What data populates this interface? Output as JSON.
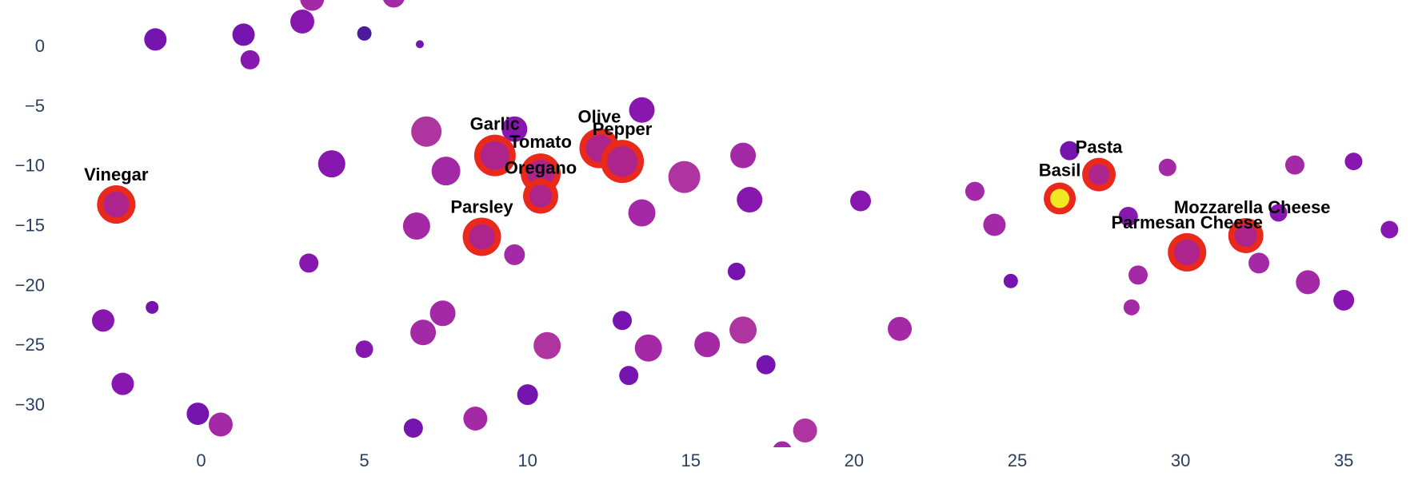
{
  "chart_data": {
    "type": "scatter",
    "title": "",
    "xlabel": "",
    "ylabel": "",
    "xlim": [
      -4.2,
      37.2
    ],
    "ylim": [
      -33.6,
      3.8
    ],
    "grid": false,
    "x_ticks": [
      0,
      5,
      10,
      15,
      20,
      25,
      30,
      35
    ],
    "x_tick_labels": [
      "0",
      "5",
      "10",
      "15",
      "20",
      "25",
      "30",
      "35"
    ],
    "y_ticks": [
      0,
      -5,
      -10,
      -15,
      -20,
      -25,
      -30
    ],
    "y_tick_labels": [
      "0",
      "−5",
      "−10",
      "−15",
      "−20",
      "−25",
      "−30"
    ],
    "colors": {
      "dark_purple": "#3d0a91",
      "purple": "#6a00a8",
      "violet": "#7e03a8",
      "magenta_purple": "#9c179e",
      "orchid": "#a72497",
      "highlight_ring": "#e8291c",
      "highlight_fill": "#f0f921",
      "axis_text": "#2a3f5f"
    },
    "points": [
      {
        "x": -1.4,
        "y": 0.5,
        "size": 14,
        "color": "#6a00a8"
      },
      {
        "x": 1.3,
        "y": 0.9,
        "size": 14,
        "color": "#6a00a8"
      },
      {
        "x": 1.5,
        "y": -1.2,
        "size": 12,
        "color": "#7e03a8"
      },
      {
        "x": 3.1,
        "y": 2.0,
        "size": 15,
        "color": "#7e03a8"
      },
      {
        "x": 3.4,
        "y": 3.9,
        "size": 15,
        "color": "#9c179e"
      },
      {
        "x": 5.0,
        "y": 1.0,
        "size": 9,
        "color": "#3d0a91"
      },
      {
        "x": 5.9,
        "y": 4.1,
        "size": 14,
        "color": "#9c179e"
      },
      {
        "x": 6.7,
        "y": 0.1,
        "size": 5,
        "color": "#6a00a8"
      },
      {
        "x": 6.9,
        "y": -7.2,
        "size": 19,
        "color": "#a72497"
      },
      {
        "x": 4.0,
        "y": -9.9,
        "size": 17,
        "color": "#7e03a8"
      },
      {
        "x": 7.5,
        "y": -10.5,
        "size": 18,
        "color": "#9c179e"
      },
      {
        "x": 9.6,
        "y": -7.0,
        "size": 16,
        "color": "#7e03a8"
      },
      {
        "x": 13.5,
        "y": -5.4,
        "size": 16,
        "color": "#7e03a8"
      },
      {
        "x": 14.8,
        "y": -11.0,
        "size": 20,
        "color": "#a72497"
      },
      {
        "x": 16.6,
        "y": -9.2,
        "size": 16,
        "color": "#9c179e"
      },
      {
        "x": 13.5,
        "y": -14.0,
        "size": 17,
        "color": "#9c179e"
      },
      {
        "x": 16.8,
        "y": -12.9,
        "size": 16,
        "color": "#7e03a8"
      },
      {
        "x": 6.6,
        "y": -15.1,
        "size": 17,
        "color": "#9c179e"
      },
      {
        "x": 9.6,
        "y": -17.5,
        "size": 13,
        "color": "#9c179e"
      },
      {
        "x": 3.3,
        "y": -18.2,
        "size": 12,
        "color": "#7e03a8"
      },
      {
        "x": 16.4,
        "y": -18.9,
        "size": 11,
        "color": "#6a00a8"
      },
      {
        "x": 20.2,
        "y": -13.0,
        "size": 13,
        "color": "#7e03a8"
      },
      {
        "x": 23.7,
        "y": -12.2,
        "size": 12,
        "color": "#9c179e"
      },
      {
        "x": 24.3,
        "y": -15.0,
        "size": 14,
        "color": "#9c179e"
      },
      {
        "x": 24.8,
        "y": -19.7,
        "size": 9,
        "color": "#6a00a8"
      },
      {
        "x": 26.6,
        "y": -8.8,
        "size": 12,
        "color": "#6a00a8"
      },
      {
        "x": 29.6,
        "y": -10.2,
        "size": 11,
        "color": "#9c179e"
      },
      {
        "x": 28.4,
        "y": -14.3,
        "size": 12,
        "color": "#7e03a8"
      },
      {
        "x": 33.5,
        "y": -10.0,
        "size": 12,
        "color": "#9c179e"
      },
      {
        "x": 35.3,
        "y": -9.7,
        "size": 11,
        "color": "#7e03a8"
      },
      {
        "x": 33.0,
        "y": -14.0,
        "size": 11,
        "color": "#7e03a8"
      },
      {
        "x": 36.4,
        "y": -15.4,
        "size": 11,
        "color": "#7e03a8"
      },
      {
        "x": 28.7,
        "y": -19.2,
        "size": 12,
        "color": "#9c179e"
      },
      {
        "x": 32.4,
        "y": -18.2,
        "size": 13,
        "color": "#9c179e"
      },
      {
        "x": 33.9,
        "y": -19.8,
        "size": 15,
        "color": "#9c179e"
      },
      {
        "x": 35.0,
        "y": -21.3,
        "size": 13,
        "color": "#7e03a8"
      },
      {
        "x": 28.5,
        "y": -21.9,
        "size": 10,
        "color": "#9c179e"
      },
      {
        "x": -3.0,
        "y": -23.0,
        "size": 14,
        "color": "#7e03a8"
      },
      {
        "x": -1.5,
        "y": -21.9,
        "size": 8,
        "color": "#6a00a8"
      },
      {
        "x": -2.4,
        "y": -28.3,
        "size": 14,
        "color": "#7e03a8"
      },
      {
        "x": -0.1,
        "y": -30.8,
        "size": 14,
        "color": "#6a00a8"
      },
      {
        "x": 0.6,
        "y": -31.7,
        "size": 15,
        "color": "#9c179e"
      },
      {
        "x": 5.0,
        "y": -25.4,
        "size": 11,
        "color": "#7e03a8"
      },
      {
        "x": 6.8,
        "y": -24.0,
        "size": 16,
        "color": "#9c179e"
      },
      {
        "x": 7.4,
        "y": -22.4,
        "size": 16,
        "color": "#9c179e"
      },
      {
        "x": 6.5,
        "y": -32.0,
        "size": 12,
        "color": "#6a00a8"
      },
      {
        "x": 8.4,
        "y": -31.2,
        "size": 15,
        "color": "#9c179e"
      },
      {
        "x": 10.0,
        "y": -29.2,
        "size": 13,
        "color": "#6a00a8"
      },
      {
        "x": 10.6,
        "y": -25.1,
        "size": 17,
        "color": "#a72497"
      },
      {
        "x": 12.9,
        "y": -23.0,
        "size": 12,
        "color": "#6a00a8"
      },
      {
        "x": 13.7,
        "y": -25.3,
        "size": 17,
        "color": "#9c179e"
      },
      {
        "x": 13.1,
        "y": -27.6,
        "size": 12,
        "color": "#6a00a8"
      },
      {
        "x": 15.5,
        "y": -25.0,
        "size": 16,
        "color": "#9c179e"
      },
      {
        "x": 16.6,
        "y": -23.8,
        "size": 17,
        "color": "#a72497"
      },
      {
        "x": 17.3,
        "y": -26.7,
        "size": 12,
        "color": "#6a00a8"
      },
      {
        "x": 18.5,
        "y": -32.2,
        "size": 15,
        "color": "#a72497"
      },
      {
        "x": 17.8,
        "y": -33.9,
        "size": 12,
        "color": "#9c179e"
      },
      {
        "x": 21.4,
        "y": -23.7,
        "size": 15,
        "color": "#9c179e"
      }
    ],
    "highlighted": [
      {
        "name": "Vinegar",
        "x": -2.6,
        "y": -13.3,
        "size": 16,
        "color": "#a72497",
        "label_dx": 0,
        "label_dy": -30
      },
      {
        "name": "Garlic",
        "x": 9.0,
        "y": -9.2,
        "size": 18,
        "color": "#a72497",
        "label_dx": 0,
        "label_dy": -32
      },
      {
        "name": "Tomato",
        "x": 10.4,
        "y": -10.7,
        "size": 17,
        "color": "#a72497",
        "label_dx": 0,
        "label_dy": -32
      },
      {
        "name": "Oregano",
        "x": 10.4,
        "y": -12.6,
        "size": 14,
        "color": "#a72497",
        "label_dx": 0,
        "label_dy": -28
      },
      {
        "name": "Olive",
        "x": 12.2,
        "y": -8.6,
        "size": 17,
        "color": "#a72497",
        "label_dx": 0,
        "label_dy": -32
      },
      {
        "name": "Pepper",
        "x": 12.9,
        "y": -9.7,
        "size": 19,
        "color": "#a72497",
        "label_dx": 0,
        "label_dy": -33
      },
      {
        "name": "Parsley",
        "x": 8.6,
        "y": -16.0,
        "size": 16,
        "color": "#a72497",
        "label_dx": 0,
        "label_dy": -30
      },
      {
        "name": "Basil",
        "x": 26.3,
        "y": -12.8,
        "size": 12,
        "color": "#f0f921",
        "label_dx": 0,
        "label_dy": -28
      },
      {
        "name": "Pasta",
        "x": 27.5,
        "y": -10.8,
        "size": 13,
        "color": "#a72497",
        "label_dx": 0,
        "label_dy": -27
      },
      {
        "name": "Mozzarella Cheese",
        "x": 32.0,
        "y": -15.9,
        "size": 14,
        "color": "#a72497",
        "label_dx": 8,
        "label_dy": -28
      },
      {
        "name": "Parmesan Cheese",
        "x": 30.2,
        "y": -17.3,
        "size": 16,
        "color": "#a72497",
        "label_dx": 0,
        "label_dy": -30
      }
    ]
  }
}
